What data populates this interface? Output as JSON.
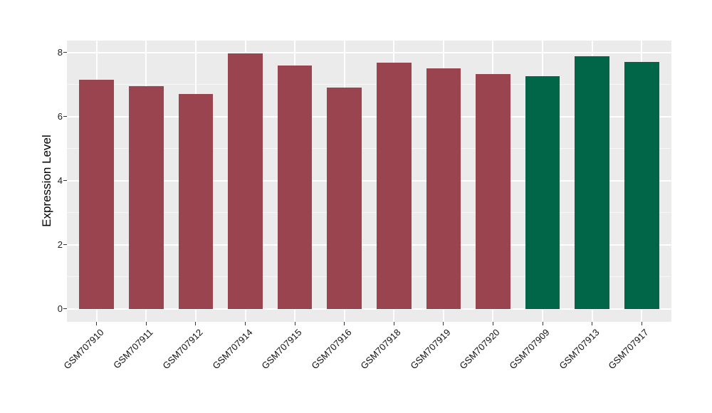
{
  "chart_data": {
    "type": "bar",
    "title": "",
    "xlabel": "",
    "ylabel": "Expression Level",
    "categories": [
      "GSM707910",
      "GSM707911",
      "GSM707912",
      "GSM707914",
      "GSM707915",
      "GSM707916",
      "GSM707918",
      "GSM707919",
      "GSM707920",
      "GSM707909",
      "GSM707913",
      "GSM707917"
    ],
    "values": [
      7.15,
      6.95,
      6.7,
      7.96,
      7.6,
      6.91,
      7.69,
      7.5,
      7.32,
      7.25,
      7.88,
      7.7
    ],
    "bar_colors": [
      "#9A4450",
      "#9A4450",
      "#9A4450",
      "#9A4450",
      "#9A4450",
      "#9A4450",
      "#9A4450",
      "#9A4450",
      "#9A4450",
      "#016648",
      "#016648",
      "#016648"
    ],
    "group_colors": {
      "red_group": "#9A4450",
      "green_group": "#016648"
    },
    "yticks": [
      0,
      2,
      4,
      6,
      8
    ],
    "minor_gridlines": [
      1,
      3,
      5,
      7
    ],
    "ylim": [
      -0.41,
      8.37
    ],
    "grid": true,
    "legend_position": "none",
    "x_label_rotation_deg": 45,
    "panel_background": "#EBEBEB",
    "gridline_color": "#FFFFFF"
  }
}
